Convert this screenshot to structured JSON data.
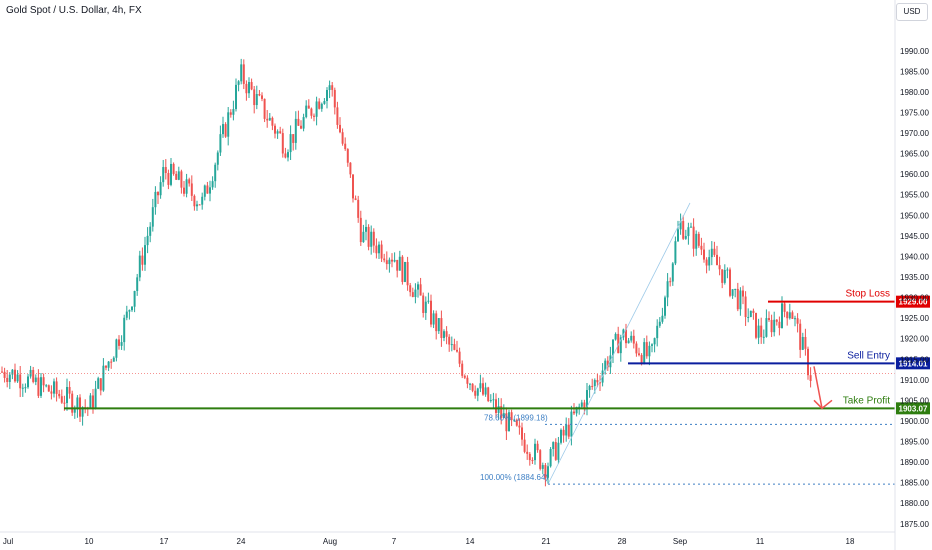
{
  "title": "Gold Spot / U.S. Dollar, 4h, FX",
  "currency_button": "USD",
  "colors": {
    "up": "#26a69a",
    "down": "#ef5350",
    "stop": "#e00000",
    "entry": "#0a1e9e",
    "target": "#2e7d0f",
    "fib": "#3d7fc4"
  },
  "chart_data": {
    "type": "candlestick",
    "ylim": [
      1873,
      1997
    ],
    "y_ticks": [
      1875,
      1880,
      1885,
      1890,
      1895,
      1900,
      1905,
      1910,
      1915,
      1920,
      1925,
      1930,
      1935,
      1940,
      1945,
      1950,
      1955,
      1960,
      1965,
      1970,
      1975,
      1980,
      1985,
      1990
    ],
    "x_ticks": [
      "Jul",
      "10",
      "17",
      "24",
      "Aug",
      "7",
      "14",
      "21",
      "28",
      "Sep",
      "11",
      "18"
    ],
    "price_path": [
      [
        "Jul",
        1912
      ],
      [
        "10",
        1903
      ],
      [
        "10",
        1925
      ],
      [
        "17",
        1961
      ],
      [
        "17",
        1953
      ],
      [
        "24",
        1984
      ],
      [
        "24",
        1967
      ],
      [
        "Aug",
        1982
      ],
      [
        "Aug",
        1945
      ],
      [
        "7",
        1940
      ],
      [
        "7",
        1925
      ],
      [
        "14",
        1910
      ],
      [
        "21",
        1889
      ],
      [
        "21",
        1905
      ],
      [
        "28",
        1921
      ],
      [
        "28",
        1915
      ],
      [
        "Sep",
        1948
      ],
      [
        "Sep",
        1937
      ],
      [
        "11",
        1921
      ],
      [
        "11",
        1928
      ],
      [
        "11",
        1910
      ]
    ],
    "levels": [
      {
        "label": "Stop Loss",
        "value": 1929.0,
        "value_label": "1929.00",
        "style": "solid"
      },
      {
        "label": "Sell Entry",
        "value": 1914.01,
        "value_label": "1914.01",
        "style": "solid"
      },
      {
        "label": "Take Profit",
        "value": 1903.07,
        "value_label": "1903.07",
        "style": "solid"
      }
    ],
    "fibonacci": [
      {
        "label": "78.60% (1899.18)",
        "value": 1899.18
      },
      {
        "label": "100.00% (1884.64)",
        "value": 1884.64
      }
    ],
    "current_price_line": 1911.5,
    "annotation": "arrow pointing down from Sell Entry to Take Profit"
  }
}
